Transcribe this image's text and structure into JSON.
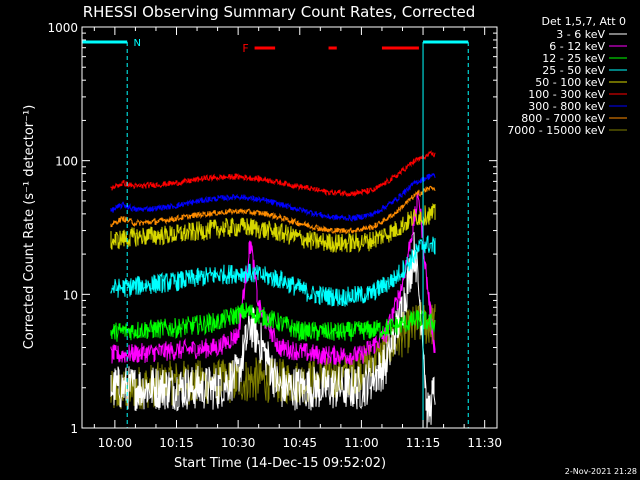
{
  "chart_data": {
    "type": "line",
    "title": "RHESSI Observing Summary Count Rates, Corrected",
    "xlabel": "Start Time (14-Dec-15 09:52:02)",
    "ylabel": "Corrected Count Rate (s⁻¹ detector⁻¹)",
    "yscale": "log",
    "ylim": [
      1,
      1000
    ],
    "xlim": [
      "09:52",
      "11:33"
    ],
    "x_ticks": [
      "10:00",
      "10:15",
      "10:30",
      "10:45",
      "11:00",
      "11:15",
      "11:30"
    ],
    "y_ticks": [
      "1",
      "10",
      "100",
      "1000"
    ],
    "legend_title": "Det 1,5,7, Att 0",
    "legend_position": "right",
    "data_start": "09:59",
    "data_end": "11:18",
    "series": [
      {
        "name": "3 - 6 keV",
        "color": "#ffffff",
        "style": "noisy-low",
        "points": [
          [
            "09:59",
            2
          ],
          [
            "10:05",
            2
          ],
          [
            "10:15",
            2
          ],
          [
            "10:25",
            2
          ],
          [
            "10:30",
            2.5
          ],
          [
            "10:33",
            6
          ],
          [
            "10:36",
            4
          ],
          [
            "10:40",
            2
          ],
          [
            "10:50",
            2
          ],
          [
            "11:00",
            2
          ],
          [
            "11:06",
            3
          ],
          [
            "11:10",
            8
          ],
          [
            "11:13",
            22
          ],
          [
            "11:15",
            5
          ],
          [
            "11:16",
            1.2
          ],
          [
            "11:18",
            2
          ]
        ]
      },
      {
        "name": "6 - 12 keV",
        "color": "#ff00ff",
        "style": "noisy",
        "points": [
          [
            "09:59",
            3.5
          ],
          [
            "10:05",
            3.6
          ],
          [
            "10:15",
            3.8
          ],
          [
            "10:25",
            4
          ],
          [
            "10:30",
            5
          ],
          [
            "10:33",
            25
          ],
          [
            "10:35",
            8
          ],
          [
            "10:40",
            4
          ],
          [
            "10:50",
            3.5
          ],
          [
            "11:00",
            3.5
          ],
          [
            "11:06",
            5
          ],
          [
            "11:10",
            12
          ],
          [
            "11:13",
            38
          ],
          [
            "11:14",
            55
          ],
          [
            "11:16",
            12
          ],
          [
            "11:18",
            3.5
          ]
        ]
      },
      {
        "name": "12 - 25 keV",
        "color": "#00ff00",
        "style": "noisy",
        "points": [
          [
            "09:59",
            5.2
          ],
          [
            "10:05",
            5.4
          ],
          [
            "10:15",
            5.6
          ],
          [
            "10:25",
            6.2
          ],
          [
            "10:32",
            7.5
          ],
          [
            "10:38",
            6.5
          ],
          [
            "10:45",
            5.3
          ],
          [
            "10:55",
            5.2
          ],
          [
            "11:05",
            5.5
          ],
          [
            "11:10",
            6
          ],
          [
            "11:14",
            6.5
          ],
          [
            "11:18",
            6
          ]
        ]
      },
      {
        "name": "25 - 50 keV",
        "color": "#00ffff",
        "style": "noisy",
        "points": [
          [
            "09:59",
            11
          ],
          [
            "10:05",
            11.5
          ],
          [
            "10:15",
            12.5
          ],
          [
            "10:25",
            14
          ],
          [
            "10:32",
            14.5
          ],
          [
            "10:40",
            13
          ],
          [
            "10:48",
            10
          ],
          [
            "10:55",
            9.5
          ],
          [
            "11:02",
            10
          ],
          [
            "11:08",
            13
          ],
          [
            "11:12",
            18
          ],
          [
            "11:15",
            24
          ],
          [
            "11:18",
            23
          ]
        ]
      },
      {
        "name": "50 - 100 keV",
        "color": "#d7d700",
        "style": "noisy",
        "points": [
          [
            "09:59",
            25
          ],
          [
            "10:05",
            27
          ],
          [
            "10:15",
            28
          ],
          [
            "10:25",
            31
          ],
          [
            "10:32",
            32
          ],
          [
            "10:40",
            29
          ],
          [
            "10:48",
            25
          ],
          [
            "10:55",
            24
          ],
          [
            "11:02",
            25
          ],
          [
            "11:08",
            30
          ],
          [
            "11:13",
            38
          ],
          [
            "11:18",
            40
          ]
        ]
      },
      {
        "name": "100 - 300 keV",
        "color": "#ff0000",
        "style": "smooth",
        "points": [
          [
            "09:59",
            62
          ],
          [
            "10:02",
            68
          ],
          [
            "10:05",
            64
          ],
          [
            "10:10",
            66
          ],
          [
            "10:15",
            68
          ],
          [
            "10:22",
            74
          ],
          [
            "10:30",
            76
          ],
          [
            "10:37",
            72
          ],
          [
            "10:45",
            64
          ],
          [
            "10:52",
            58
          ],
          [
            "10:58",
            57
          ],
          [
            "11:03",
            60
          ],
          [
            "11:08",
            75
          ],
          [
            "11:13",
            100
          ],
          [
            "11:17",
            112
          ],
          [
            "11:18",
            110
          ]
        ]
      },
      {
        "name": "300 - 800 keV",
        "color": "#0000ff",
        "style": "smooth",
        "points": [
          [
            "09:59",
            42
          ],
          [
            "10:02",
            47
          ],
          [
            "10:05",
            43
          ],
          [
            "10:10",
            44
          ],
          [
            "10:15",
            46
          ],
          [
            "10:22",
            51
          ],
          [
            "10:30",
            54
          ],
          [
            "10:37",
            50
          ],
          [
            "10:45",
            43
          ],
          [
            "10:52",
            38
          ],
          [
            "10:58",
            37
          ],
          [
            "11:03",
            40
          ],
          [
            "11:08",
            50
          ],
          [
            "11:13",
            68
          ],
          [
            "11:17",
            78
          ],
          [
            "11:18",
            76
          ]
        ]
      },
      {
        "name": "800 - 7000 keV",
        "color": "#ff8c00",
        "style": "smooth",
        "points": [
          [
            "09:59",
            33
          ],
          [
            "10:02",
            37
          ],
          [
            "10:05",
            34
          ],
          [
            "10:10",
            35
          ],
          [
            "10:15",
            37
          ],
          [
            "10:22",
            40
          ],
          [
            "10:30",
            42
          ],
          [
            "10:37",
            40
          ],
          [
            "10:45",
            34
          ],
          [
            "10:52",
            30
          ],
          [
            "10:58",
            30
          ],
          [
            "11:03",
            32
          ],
          [
            "11:08",
            40
          ],
          [
            "11:13",
            55
          ],
          [
            "11:17",
            63
          ],
          [
            "11:18",
            62
          ]
        ]
      },
      {
        "name": "7000 - 15000 keV",
        "color": "#808000",
        "style": "noisy-low",
        "points": [
          [
            "09:59",
            1.8
          ],
          [
            "10:05",
            2
          ],
          [
            "10:15",
            2.2
          ],
          [
            "10:25",
            2.2
          ],
          [
            "10:35",
            2.3
          ],
          [
            "10:45",
            2.2
          ],
          [
            "10:55",
            2.4
          ],
          [
            "11:00",
            2.8
          ],
          [
            "11:05",
            3.5
          ],
          [
            "11:10",
            5
          ],
          [
            "11:14",
            6
          ],
          [
            "11:18",
            6
          ]
        ]
      }
    ],
    "annotations": {
      "night_marker": "N",
      "flare_marker": "F",
      "flare_intervals": [
        [
          "10:34",
          "10:39"
        ],
        [
          "10:52",
          "10:54"
        ],
        [
          "11:05",
          "11:14"
        ]
      ],
      "night_intervals": [
        [
          "09:52",
          "10:03"
        ],
        [
          "11:15",
          "11:26"
        ]
      ],
      "night_line_color": "#00ffff",
      "flare_color": "#ff0000"
    }
  },
  "timestamp": "2-Nov-2021 21:28"
}
